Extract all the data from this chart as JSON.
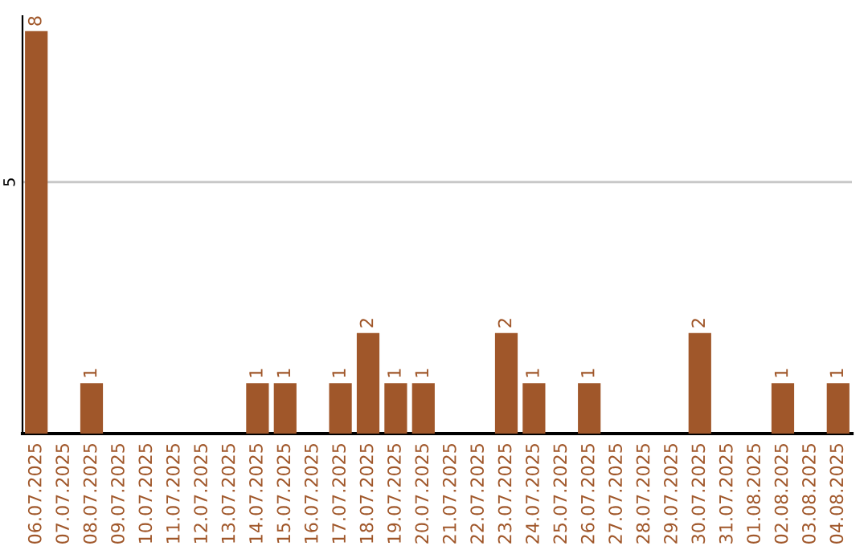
{
  "chart_data": {
    "type": "bar",
    "categories": [
      "06.07.2025",
      "07.07.2025",
      "08.07.2025",
      "09.07.2025",
      "10.07.2025",
      "11.07.2025",
      "12.07.2025",
      "13.07.2025",
      "14.07.2025",
      "15.07.2025",
      "16.07.2025",
      "17.07.2025",
      "18.07.2025",
      "19.07.2025",
      "20.07.2025",
      "21.07.2025",
      "22.07.2025",
      "23.07.2025",
      "24.07.2025",
      "25.07.2025",
      "26.07.2025",
      "27.07.2025",
      "28.07.2025",
      "29.07.2025",
      "30.07.2025",
      "31.07.2025",
      "01.08.2025",
      "02.08.2025",
      "03.08.2025",
      "04.08.2025"
    ],
    "values": [
      8,
      0,
      1,
      0,
      0,
      0,
      0,
      0,
      1,
      1,
      0,
      1,
      2,
      1,
      1,
      0,
      0,
      2,
      1,
      0,
      1,
      0,
      0,
      0,
      2,
      0,
      0,
      1,
      0,
      1
    ],
    "value_labels": [
      "8",
      null,
      "1",
      null,
      null,
      null,
      null,
      null,
      "1",
      "1",
      null,
      "1",
      "2",
      "1",
      "1",
      null,
      null,
      "2",
      "1",
      null,
      "1",
      null,
      null,
      null,
      "2",
      null,
      null,
      "1",
      null,
      "1"
    ],
    "color": "#a0572a",
    "ylim": [
      0,
      8.3
    ],
    "yticks": [
      5
    ],
    "grid": "y",
    "legend": false
  }
}
